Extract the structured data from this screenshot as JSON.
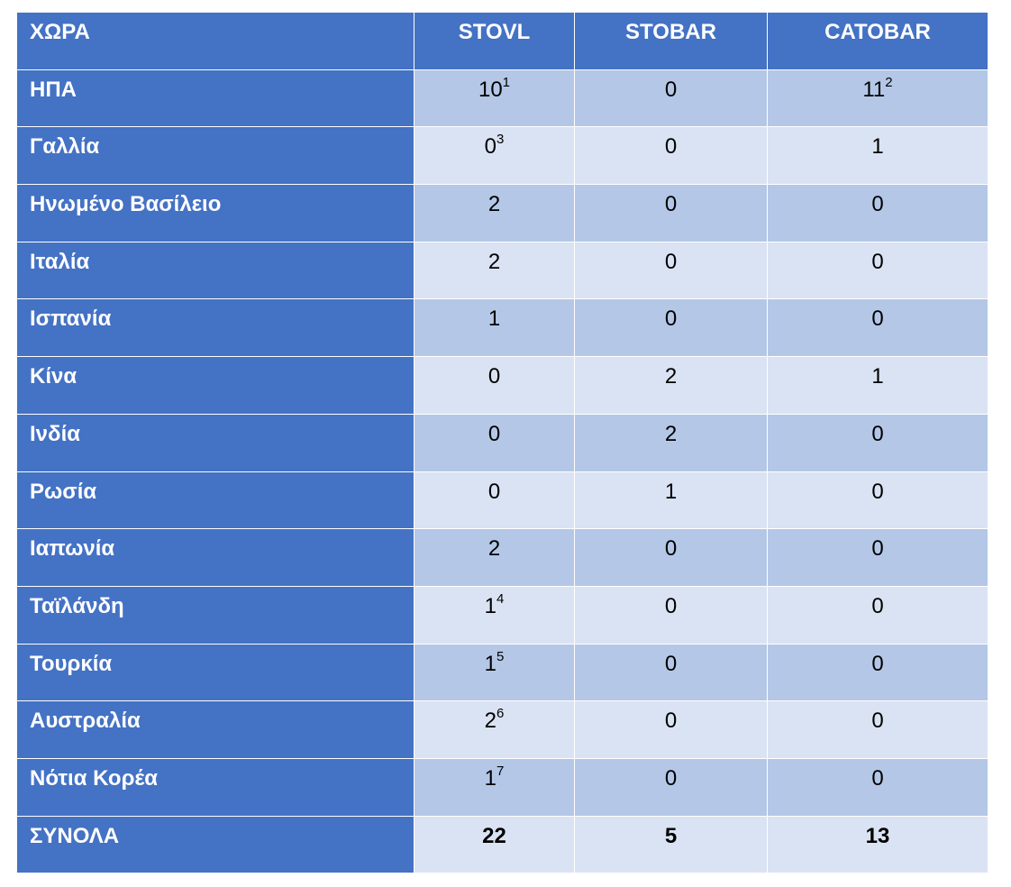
{
  "table": {
    "headers": {
      "country": "ΧΩΡΑ",
      "stovl": "STOVL",
      "stobar": "STOBAR",
      "catobar": "CATOBAR"
    },
    "rows": [
      {
        "country": "ΗΠΑ",
        "stovl": "10",
        "stovl_note": "1",
        "stobar": "0",
        "stobar_note": "",
        "catobar": "11",
        "catobar_note": "2"
      },
      {
        "country": "Γαλλία",
        "stovl": "0",
        "stovl_note": "3",
        "stobar": "0",
        "stobar_note": "",
        "catobar": "1",
        "catobar_note": ""
      },
      {
        "country": "Ηνωμένο Βασίλειο",
        "stovl": "2",
        "stovl_note": "",
        "stobar": "0",
        "stobar_note": "",
        "catobar": "0",
        "catobar_note": ""
      },
      {
        "country": "Ιταλία",
        "stovl": "2",
        "stovl_note": "",
        "stobar": "0",
        "stobar_note": "",
        "catobar": "0",
        "catobar_note": ""
      },
      {
        "country": "Ισπανία",
        "stovl": "1",
        "stovl_note": "",
        "stobar": "0",
        "stobar_note": "",
        "catobar": "0",
        "catobar_note": ""
      },
      {
        "country": "Κίνα",
        "stovl": "0",
        "stovl_note": "",
        "stobar": "2",
        "stobar_note": "",
        "catobar": "1",
        "catobar_note": ""
      },
      {
        "country": "Ινδία",
        "stovl": "0",
        "stovl_note": "",
        "stobar": "2",
        "stobar_note": "",
        "catobar": "0",
        "catobar_note": ""
      },
      {
        "country": "Ρωσία",
        "stovl": "0",
        "stovl_note": "",
        "stobar": "1",
        "stobar_note": "",
        "catobar": "0",
        "catobar_note": ""
      },
      {
        "country": "Ιαπωνία",
        "stovl": "2",
        "stovl_note": "",
        "stobar": "0",
        "stobar_note": "",
        "catobar": "0",
        "catobar_note": ""
      },
      {
        "country": "Ταϊλάνδη",
        "stovl": "1",
        "stovl_note": "4",
        "stobar": "0",
        "stobar_note": "",
        "catobar": "0",
        "catobar_note": ""
      },
      {
        "country": "Τουρκία",
        "stovl": "1",
        "stovl_note": "5",
        "stobar": "0",
        "stobar_note": "",
        "catobar": "0",
        "catobar_note": ""
      },
      {
        "country": "Αυστραλία",
        "stovl": "2",
        "stovl_note": "6",
        "stobar": "0",
        "stobar_note": "",
        "catobar": "0",
        "catobar_note": ""
      },
      {
        "country": "Νότια Κορέα",
        "stovl": "1",
        "stovl_note": "7",
        "stobar": "0",
        "stobar_note": "",
        "catobar": "0",
        "catobar_note": ""
      }
    ],
    "totals": {
      "label": "ΣΥΝΟΛΑ",
      "stovl": "22",
      "stobar": "5",
      "catobar": "13"
    }
  },
  "colors": {
    "header_bg": "#4472c4",
    "row_dark": "#b4c7e7",
    "row_light": "#dae3f3"
  }
}
